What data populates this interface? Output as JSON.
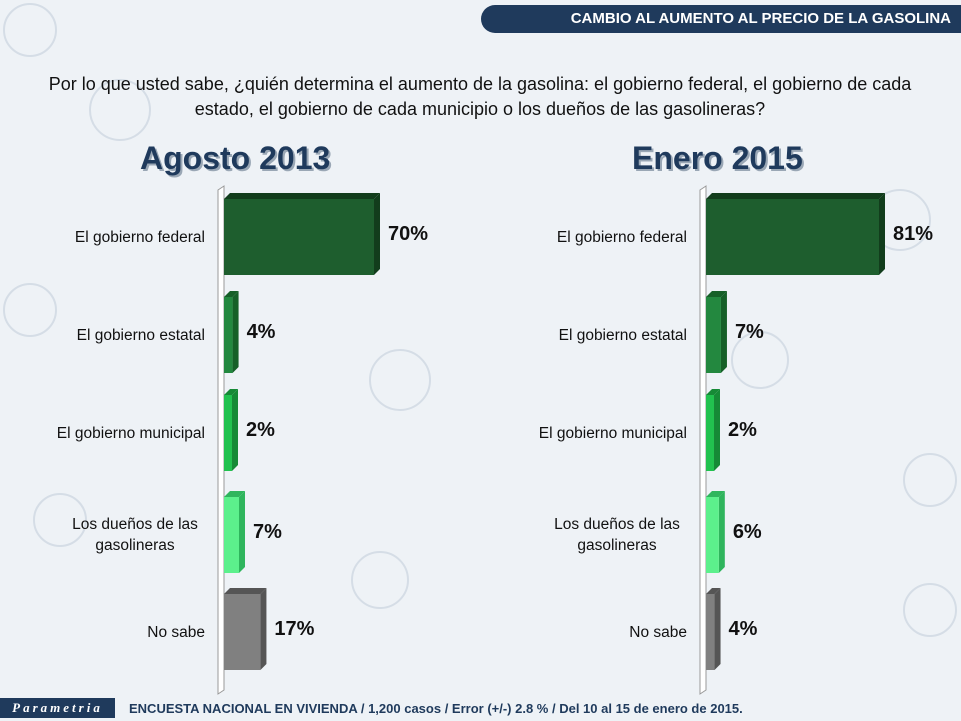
{
  "header": {
    "title": "CAMBIO AL AUMENTO AL PRECIO DE LA GASOLINA"
  },
  "question": "Por lo que usted sabe, ¿quién determina el aumento de la gasolina: el gobierno federal, el gobierno de cada estado, el gobierno de cada municipio o los dueños de las gasolineras?",
  "footer": {
    "logo": "Parametria",
    "text": "ENCUESTA NACIONAL EN VIVIENDA / 1,200 casos / Error (+/-) 2.8 % / Del 10 al 15 de enero de 2015."
  },
  "colors": {
    "dark_green": "#1e5e2e",
    "mid_green": "#23883f",
    "bright_green": "#22c24f",
    "light_green": "#5cf08c",
    "gray": "#808080",
    "header_navy": "#1f3a5c"
  },
  "chart_data": [
    {
      "type": "bar",
      "orientation": "horizontal",
      "title": "Agosto 2013",
      "categories": [
        "El gobierno federal",
        "El gobierno estatal",
        "El gobierno municipal",
        "Los dueños de las gasolineras",
        "No sabe"
      ],
      "values": [
        70,
        4,
        2,
        7,
        17
      ],
      "value_labels": [
        "70%",
        "4%",
        "2%",
        "7%",
        "17%"
      ],
      "unit": "%",
      "xlim": [
        0,
        70
      ]
    },
    {
      "type": "bar",
      "orientation": "horizontal",
      "title": "Enero 2015",
      "categories": [
        "El gobierno federal",
        "El gobierno estatal",
        "El gobierno municipal",
        "Los dueños de las gasolineras",
        "No sabe"
      ],
      "values": [
        81,
        7,
        2,
        6,
        4
      ],
      "value_labels": [
        "81%",
        "7%",
        "2%",
        "6%",
        "4%"
      ],
      "unit": "%",
      "xlim": [
        0,
        81
      ]
    }
  ]
}
